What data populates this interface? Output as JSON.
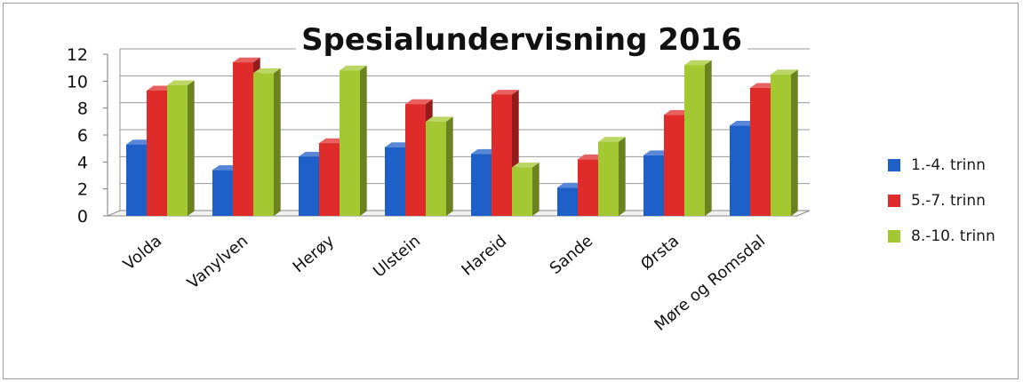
{
  "chart_data": {
    "type": "bar",
    "title": "Spesialundervisning 2016",
    "categories": [
      "Volda",
      "Vanylven",
      "Herøy",
      "Ulstein",
      "Hareid",
      "Sande",
      "Ørsta",
      "Møre og Romsdal"
    ],
    "series": [
      {
        "name": "1.-4. trinn",
        "color": "#1f5fc8",
        "values": [
          5.3,
          3.4,
          4.4,
          5.1,
          4.6,
          2.1,
          4.5,
          6.7
        ]
      },
      {
        "name": "5.-7. trinn",
        "color": "#e02b2b",
        "values": [
          9.3,
          11.4,
          5.4,
          8.3,
          9.0,
          4.2,
          7.5,
          9.5
        ]
      },
      {
        "name": "8.-10. trinn",
        "color": "#a4c832",
        "values": [
          9.7,
          10.6,
          10.8,
          7.0,
          3.6,
          5.5,
          11.2,
          10.5
        ]
      }
    ],
    "yticks": [
      "0",
      "2",
      "4",
      "6",
      "8",
      "10",
      "12"
    ],
    "ylim": [
      0,
      12
    ],
    "grid": true,
    "legend_position": "right",
    "xlabel": "",
    "ylabel": ""
  }
}
